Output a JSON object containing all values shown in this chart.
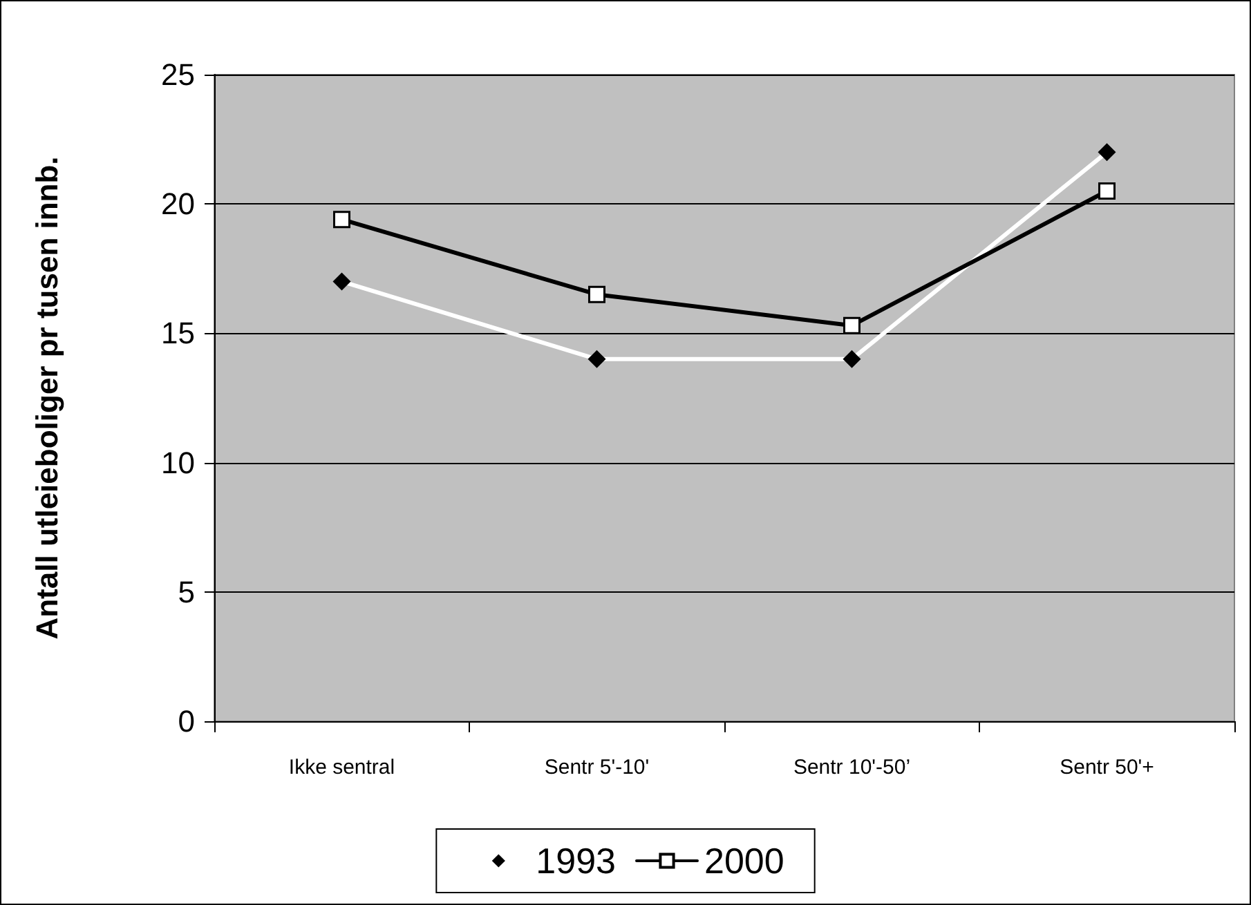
{
  "chart_data": {
    "type": "line",
    "ylabel": "Antall utleieboliger pr tusen innb.",
    "categories": [
      "Ikke sentral",
      "Sentr 5'-10'",
      "Sentr 10'-50’",
      "Sentr 50'+"
    ],
    "series": [
      {
        "name": "1993",
        "color": "#ffffff",
        "marker": "diamond",
        "values": [
          17,
          14,
          14,
          22
        ]
      },
      {
        "name": "2000",
        "color": "#000000",
        "marker": "square",
        "values": [
          19.4,
          16.5,
          15.3,
          20.5
        ]
      }
    ],
    "ylim": [
      0,
      25
    ],
    "yticks": [
      0,
      5,
      10,
      15,
      20,
      25
    ],
    "grid": "y",
    "legend": "bottom"
  }
}
